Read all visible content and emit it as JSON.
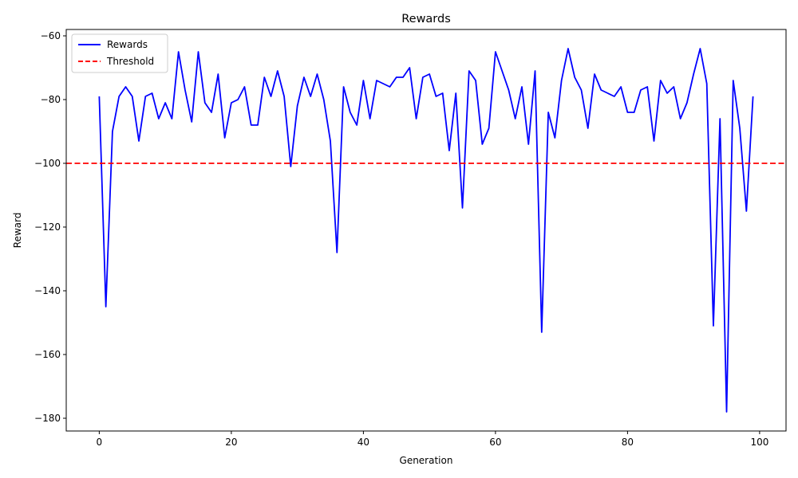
{
  "chart_data": {
    "type": "line",
    "title": "Rewards",
    "xlabel": "Generation",
    "ylabel": "Reward",
    "xlim": [
      -5,
      104
    ],
    "ylim": [
      -184,
      -58
    ],
    "xticks": [
      0,
      20,
      40,
      60,
      80,
      100
    ],
    "yticks": [
      -60,
      -80,
      -100,
      -120,
      -140,
      -160,
      -180
    ],
    "grid": false,
    "legend_position": "upper-left",
    "series": [
      {
        "name": "Rewards",
        "color": "#0000ff",
        "style": "solid",
        "x": [
          0,
          1,
          2,
          3,
          4,
          5,
          6,
          7,
          8,
          9,
          10,
          11,
          12,
          13,
          14,
          15,
          16,
          17,
          18,
          19,
          20,
          21,
          22,
          23,
          24,
          25,
          26,
          27,
          28,
          29,
          30,
          31,
          32,
          33,
          34,
          35,
          36,
          37,
          38,
          39,
          40,
          41,
          42,
          43,
          44,
          45,
          46,
          47,
          48,
          49,
          50,
          51,
          52,
          53,
          54,
          55,
          56,
          57,
          58,
          59,
          60,
          61,
          62,
          63,
          64,
          65,
          66,
          67,
          68,
          69,
          70,
          71,
          72,
          73,
          74,
          75,
          76,
          77,
          78,
          79,
          80,
          81,
          82,
          83,
          84,
          85,
          86,
          87,
          88,
          89,
          90,
          91,
          92,
          93,
          94,
          95,
          96,
          97,
          98,
          99
        ],
        "values": [
          -79,
          -145,
          -90,
          -79,
          -76,
          -79,
          -93,
          -79,
          -78,
          -86,
          -81,
          -86,
          -65,
          -77,
          -87,
          -65,
          -81,
          -84,
          -72,
          -92,
          -81,
          -80,
          -76,
          -88,
          -88,
          -73,
          -79,
          -71,
          -79,
          -101,
          -82,
          -73,
          -79,
          -72,
          -80,
          -93,
          -128,
          -76,
          -84,
          -88,
          -74,
          -86,
          -74,
          -75,
          -76,
          -73,
          -73,
          -70,
          -86,
          -73,
          -72,
          -79,
          -78,
          -96,
          -78,
          -114,
          -71,
          -74,
          -94,
          -89,
          -65,
          -71,
          -77,
          -86,
          -76,
          -94,
          -71,
          -153,
          -84,
          -92,
          -74,
          -64,
          -73,
          -77,
          -89,
          -72,
          -77,
          -78,
          -79,
          -76,
          -84,
          -84,
          -77,
          -76,
          -93,
          -74,
          -78,
          -76,
          -86,
          -81,
          -72,
          -64,
          -75,
          -151,
          -86,
          -178,
          -74,
          -89,
          -115,
          -79
        ]
      },
      {
        "name": "Threshold",
        "color": "#ff0000",
        "style": "dashed",
        "y": -100
      }
    ]
  }
}
